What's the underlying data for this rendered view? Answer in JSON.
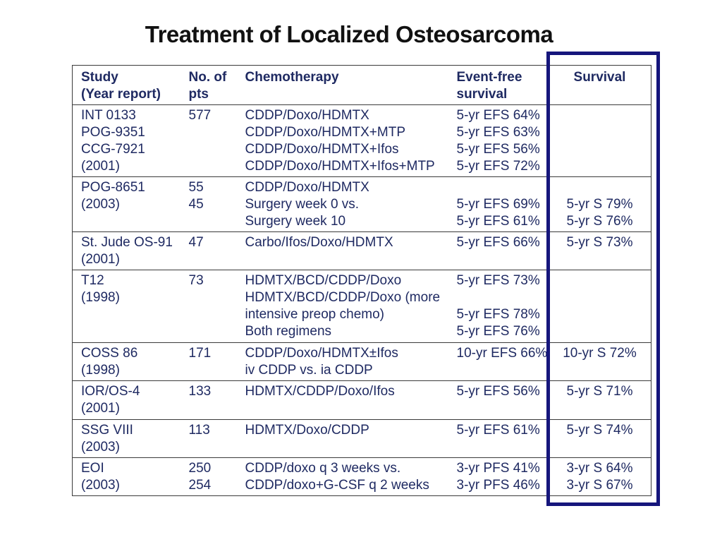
{
  "title": "Treatment of Localized Osteosarcoma",
  "colors": {
    "background": "#FFFFFF",
    "title_text": "#111111",
    "table_text_navy": "#1F2A62",
    "grid_line": "#3A3A3A",
    "highlight_box_navy": "#16167C"
  },
  "table": {
    "columns": [
      {
        "key": "study",
        "label_lines": [
          "Study",
          "(Year report)"
        ]
      },
      {
        "key": "pts",
        "label_lines": [
          "No. of",
          "pts"
        ]
      },
      {
        "key": "chemo",
        "label_lines": [
          "Chemotherapy"
        ]
      },
      {
        "key": "efs",
        "label_lines": [
          "Event-free",
          "survival"
        ]
      },
      {
        "key": "survival",
        "label_lines": [
          "Survival"
        ]
      }
    ],
    "rows": [
      {
        "study": [
          "INT 0133",
          "POG-9351",
          "CCG-7921",
          "(2001)"
        ],
        "pts": [
          "577"
        ],
        "chemo": [
          "CDDP/Doxo/HDMTX",
          "CDDP/Doxo/HDMTX+MTP",
          "CDDP/Doxo/HDMTX+Ifos",
          "CDDP/Doxo/HDMTX+Ifos+MTP"
        ],
        "efs": [
          "5-yr EFS 64%",
          "5-yr EFS 63%",
          "5-yr EFS 56%",
          "5-yr EFS 72%"
        ],
        "survival": []
      },
      {
        "study": [
          "POG-8651",
          "(2003)"
        ],
        "pts": [
          "55",
          "45"
        ],
        "chemo": [
          "CDDP/Doxo/HDMTX",
          "Surgery week 0 vs.",
          "Surgery week 10"
        ],
        "efs": [
          "",
          "5-yr EFS 69%",
          "5-yr EFS 61%"
        ],
        "survival": [
          "",
          "5-yr S 79%",
          "5-yr S 76%"
        ]
      },
      {
        "study": [
          "St. Jude OS-91",
          "(2001)"
        ],
        "pts": [
          "47"
        ],
        "chemo": [
          "Carbo/Ifos/Doxo/HDMTX"
        ],
        "efs": [
          "5-yr EFS 66%"
        ],
        "survival": [
          "5-yr S 73%"
        ]
      },
      {
        "study": [
          "T12",
          "(1998)"
        ],
        "pts": [
          "73"
        ],
        "chemo": [
          "HDMTX/BCD/CDDP/Doxo",
          "HDMTX/BCD/CDDP/Doxo (more",
          "intensive preop chemo)",
          "Both regimens"
        ],
        "efs": [
          "5-yr EFS 73%",
          "",
          "5-yr EFS 78%",
          "5-yr EFS 76%"
        ],
        "survival": []
      },
      {
        "study": [
          "COSS 86",
          "(1998)"
        ],
        "pts": [
          "171"
        ],
        "chemo": [
          "CDDP/Doxo/HDMTX±Ifos",
          "iv CDDP vs. ia CDDP"
        ],
        "efs": [
          "10-yr EFS 66%"
        ],
        "survival": [
          "10-yr S 72%"
        ]
      },
      {
        "study": [
          "IOR/OS-4",
          "(2001)"
        ],
        "pts": [
          "133"
        ],
        "chemo": [
          "HDMTX/CDDP/Doxo/Ifos"
        ],
        "efs": [
          "5-yr EFS 56%"
        ],
        "survival": [
          "5-yr S 71%"
        ]
      },
      {
        "study": [
          "SSG VIII",
          "(2003)"
        ],
        "pts": [
          "113"
        ],
        "chemo": [
          "HDMTX/Doxo/CDDP"
        ],
        "efs": [
          "5-yr EFS 61%"
        ],
        "survival": [
          "5-yr S 74%"
        ]
      },
      {
        "study": [
          "EOI",
          "(2003)"
        ],
        "pts": [
          "250",
          "254"
        ],
        "chemo": [
          "CDDP/doxo q 3 weeks vs.",
          "CDDP/doxo+G-CSF q 2 weeks"
        ],
        "efs": [
          "3-yr PFS 41%",
          "3-yr PFS 46%"
        ],
        "survival": [
          "3-yr S 64%",
          "3-yr S 67%"
        ]
      }
    ]
  }
}
